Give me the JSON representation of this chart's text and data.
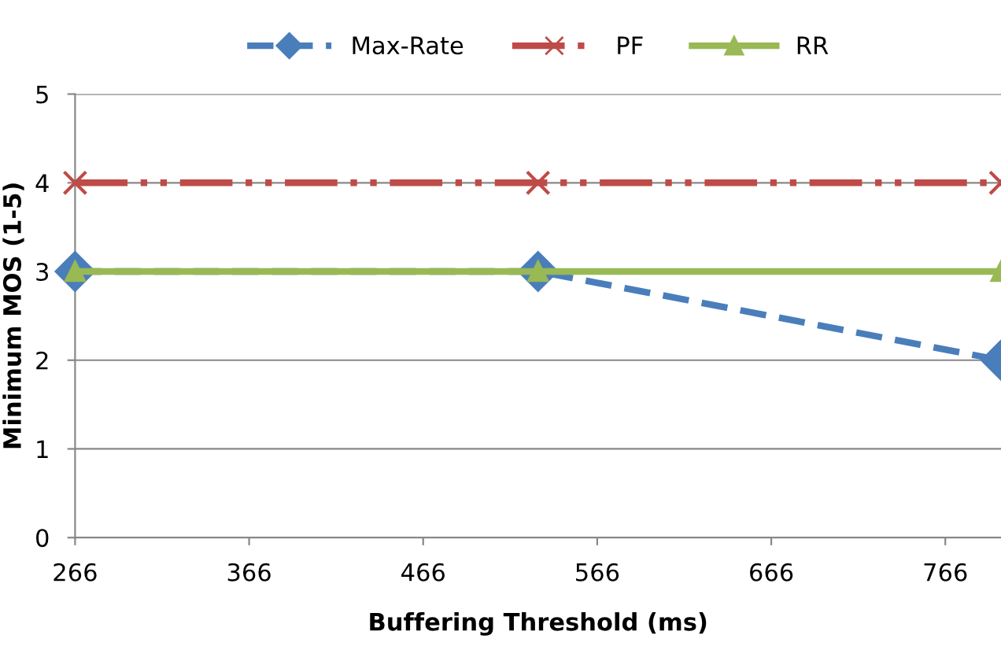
{
  "chart_data": {
    "type": "line",
    "xlabel": "Buffering Threshold (ms)",
    "ylabel": "Minimum MOS (1-5)",
    "x": [
      266,
      532,
      798
    ],
    "series": [
      {
        "name": "Max-Rate",
        "color": "#4a7ebb",
        "values": [
          3,
          3,
          2
        ],
        "marker": "diamond",
        "line_style": "dashed"
      },
      {
        "name": "PF",
        "color": "#be4b48",
        "values": [
          4,
          4,
          4
        ],
        "marker": "cross",
        "line_style": "dashdot"
      },
      {
        "name": "RR",
        "color": "#98b954",
        "values": [
          3,
          3,
          3
        ],
        "marker": "triangle",
        "line_style": "solid"
      }
    ],
    "xlim": [
      266,
      798
    ],
    "xticks": [
      266,
      366,
      466,
      566,
      666,
      766
    ],
    "ylim": [
      0,
      5
    ],
    "yticks": [
      0,
      1,
      2,
      3,
      4,
      5
    ],
    "grid": "y",
    "legend": "top"
  }
}
